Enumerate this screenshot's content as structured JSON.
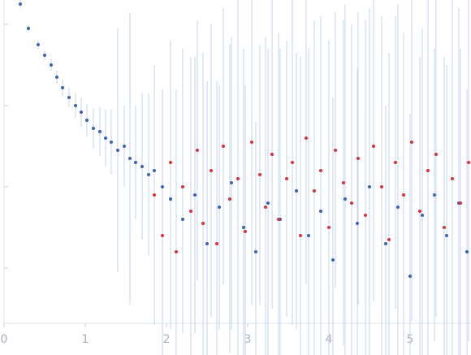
{
  "chart_data": {
    "type": "scatter",
    "xlim": [
      0,
      5.75
    ],
    "ylim": [
      0.32,
      4.3
    ],
    "xticks": [
      0,
      1,
      2,
      3,
      4,
      5
    ],
    "yticks": [
      1,
      2,
      3,
      4
    ],
    "series": [
      {
        "color": "#3a63b8",
        "errcolor": "#c3d3ec",
        "x": [
          0.2,
          0.3,
          0.42,
          0.5,
          0.58,
          0.65,
          0.72,
          0.8,
          0.88,
          0.95,
          1.02,
          1.1,
          1.18,
          1.25,
          1.32,
          1.4,
          1.48,
          1.55,
          1.62,
          1.7,
          1.78,
          1.85,
          1.95,
          2.05,
          2.2,
          2.35,
          2.5,
          2.65,
          2.8,
          2.95,
          3.1,
          3.25,
          3.4,
          3.6,
          3.75,
          3.9,
          4.05,
          4.2,
          4.35,
          4.5,
          4.7,
          4.85,
          5.0,
          5.15,
          5.3,
          5.45,
          5.6,
          5.7
        ],
        "values": [
          4.25,
          3.95,
          3.75,
          3.62,
          3.5,
          3.35,
          3.22,
          3.1,
          3.0,
          2.92,
          2.82,
          2.72,
          2.68,
          2.6,
          2.55,
          2.45,
          2.5,
          2.35,
          2.3,
          2.25,
          2.15,
          2.2,
          2.0,
          1.85,
          1.6,
          1.9,
          1.3,
          1.75,
          2.05,
          1.5,
          1.2,
          1.8,
          1.6,
          1.95,
          1.4,
          1.7,
          1.1,
          1.85,
          1.55,
          2.0,
          1.3,
          1.75,
          0.9,
          1.65,
          1.9,
          1.4,
          1.8,
          1.2
        ],
        "error": [
          0.05,
          0.05,
          0.05,
          0.06,
          0.07,
          0.08,
          0.1,
          0.12,
          0.15,
          0.18,
          0.2,
          0.25,
          0.3,
          0.35,
          0.4,
          1.5,
          0.5,
          1.8,
          0.7,
          0.9,
          1.0,
          1.2,
          1.1,
          1.6,
          1.4,
          1.7,
          2.0,
          1.5,
          1.8,
          2.2,
          1.6,
          1.9,
          2.1,
          1.7,
          2.3,
          1.8,
          2.0,
          2.4,
          1.9,
          2.2,
          1.7,
          2.5,
          2.0,
          2.3,
          1.8,
          2.1,
          2.4,
          2.0
        ]
      },
      {
        "color": "#d8323a",
        "errcolor": "#c3d3ec",
        "x": [
          1.85,
          1.95,
          2.05,
          2.12,
          2.2,
          2.3,
          2.38,
          2.45,
          2.55,
          2.62,
          2.7,
          2.78,
          2.88,
          2.97,
          3.05,
          3.15,
          3.22,
          3.3,
          3.38,
          3.48,
          3.55,
          3.65,
          3.72,
          3.82,
          3.9,
          4.0,
          4.08,
          4.18,
          4.28,
          4.36,
          4.45,
          4.55,
          4.65,
          4.74,
          4.82,
          4.92,
          5.02,
          5.12,
          5.22,
          5.32,
          5.42,
          5.52,
          5.62,
          5.72
        ],
        "values": [
          1.9,
          1.4,
          2.3,
          1.2,
          2.0,
          1.7,
          2.45,
          1.55,
          2.2,
          1.3,
          2.5,
          1.85,
          2.1,
          1.45,
          2.55,
          2.15,
          1.75,
          2.4,
          1.6,
          2.1,
          2.3,
          1.4,
          2.6,
          1.95,
          2.2,
          1.5,
          2.45,
          2.05,
          1.8,
          2.35,
          1.65,
          2.5,
          2.0,
          1.35,
          2.3,
          1.9,
          2.55,
          1.7,
          2.2,
          2.4,
          1.5,
          2.1,
          1.8,
          2.3
        ],
        "error": [
          1.6,
          1.8,
          1.5,
          2.0,
          1.7,
          1.9,
          1.6,
          2.1,
          1.8,
          2.0,
          1.7,
          1.9,
          2.2,
          1.8,
          2.0,
          1.6,
          2.1,
          1.9,
          2.3,
          1.7,
          2.0,
          2.2,
          1.8,
          2.1,
          1.9,
          2.3,
          1.7,
          2.0,
          2.2,
          1.8,
          2.4,
          1.9,
          2.1,
          2.3,
          1.8,
          2.0,
          2.2,
          1.9,
          2.4,
          2.0,
          2.1,
          2.3,
          1.9,
          2.2
        ]
      }
    ]
  }
}
